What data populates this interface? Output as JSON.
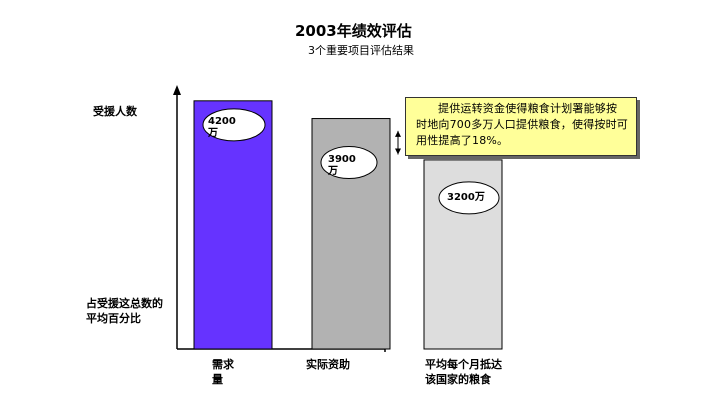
{
  "title": "2003年绩效评估",
  "subtitle": "3个重要项目评估结果",
  "ylabel_top": "受援人数",
  "ylabel_bottom": "占受援这总数的平均百分比",
  "callout": "提供运转资金使得粮食计划署能够按时地向700多万人口提供粮食，使得按时可用性提高了18%。",
  "chart_data": {
    "type": "bar",
    "categories": [
      "需求量",
      "实际资助",
      "平均每个月抵达该国家的粮食"
    ],
    "values": [
      4200,
      3900,
      3200
    ],
    "data_labels": [
      "4200万",
      "3900万",
      "3200万"
    ],
    "colors": [
      "#6633ff",
      "#b2b2b2",
      "#dddddd"
    ],
    "ylim": [
      0,
      4400
    ],
    "xlabel": "",
    "ylabel": "受援人数",
    "grid": false
  }
}
